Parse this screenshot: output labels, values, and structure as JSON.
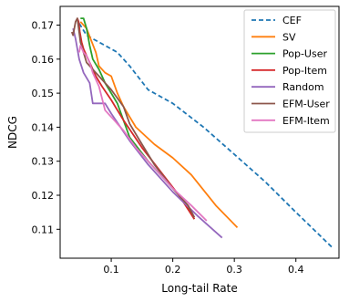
{
  "chart_data": {
    "type": "line",
    "xlabel": "Long-tail Rate",
    "ylabel": "NDCG",
    "xlim": [
      0.017,
      0.47
    ],
    "ylim": [
      0.1015,
      0.1755
    ],
    "xticks": [
      0.1,
      0.2,
      0.3,
      0.4
    ],
    "xtick_labels": [
      "0.1",
      "0.2",
      "0.3",
      "0.4"
    ],
    "yticks": [
      0.11,
      0.12,
      0.13,
      0.14,
      0.15,
      0.16,
      0.17
    ],
    "ytick_labels": [
      "0.11",
      "0.12",
      "0.13",
      "0.14",
      "0.15",
      "0.16",
      "0.17"
    ],
    "grid": false,
    "legend_position": "top-right",
    "series": [
      {
        "name": "CEF",
        "color": "#1f77b4",
        "dash": true,
        "x": [
          0.048,
          0.06,
          0.09,
          0.11,
          0.13,
          0.16,
          0.2,
          0.25,
          0.3,
          0.35,
          0.4,
          0.46
        ],
        "y": [
          0.1705,
          0.167,
          0.164,
          0.162,
          0.158,
          0.151,
          0.147,
          0.14,
          0.132,
          0.124,
          0.115,
          0.1045
        ]
      },
      {
        "name": "SV",
        "color": "#ff7f0e",
        "dash": false,
        "x": [
          0.05,
          0.06,
          0.075,
          0.08,
          0.09,
          0.1,
          0.11,
          0.12,
          0.14,
          0.17,
          0.2,
          0.23,
          0.27,
          0.305
        ],
        "y": [
          0.171,
          0.169,
          0.162,
          0.158,
          0.156,
          0.155,
          0.15,
          0.146,
          0.14,
          0.135,
          0.131,
          0.126,
          0.117,
          0.1105
        ]
      },
      {
        "name": "Pop-User",
        "color": "#2ca02c",
        "dash": false,
        "x": [
          0.05,
          0.055,
          0.06,
          0.065,
          0.07,
          0.08,
          0.09,
          0.11,
          0.13,
          0.16,
          0.19,
          0.215,
          0.235
        ],
        "y": [
          0.172,
          0.172,
          0.169,
          0.164,
          0.16,
          0.157,
          0.153,
          0.147,
          0.137,
          0.13,
          0.124,
          0.119,
          0.113
        ]
      },
      {
        "name": "Pop-Item",
        "color": "#d62728",
        "dash": false,
        "x": [
          0.045,
          0.047,
          0.049,
          0.052,
          0.055,
          0.06,
          0.065,
          0.075,
          0.085,
          0.1,
          0.12,
          0.15,
          0.18,
          0.21,
          0.235
        ],
        "y": [
          0.172,
          0.171,
          0.168,
          0.165,
          0.163,
          0.161,
          0.159,
          0.155,
          0.152,
          0.148,
          0.142,
          0.134,
          0.127,
          0.12,
          0.113
        ]
      },
      {
        "name": "Random",
        "color": "#9467bd",
        "dash": false,
        "x": [
          0.038,
          0.042,
          0.045,
          0.048,
          0.055,
          0.065,
          0.07,
          0.09,
          0.1,
          0.13,
          0.16,
          0.2,
          0.24,
          0.28
        ],
        "y": [
          0.169,
          0.166,
          0.163,
          0.16,
          0.156,
          0.153,
          0.147,
          0.147,
          0.144,
          0.136,
          0.129,
          0.121,
          0.114,
          0.1075
        ]
      },
      {
        "name": "EFM-User",
        "color": "#8c564b",
        "dash": false,
        "x": [
          0.036,
          0.038,
          0.042,
          0.045,
          0.05,
          0.06,
          0.08,
          0.1,
          0.12,
          0.13,
          0.15,
          0.17,
          0.2,
          0.225,
          0.235
        ],
        "y": [
          0.168,
          0.167,
          0.171,
          0.172,
          0.165,
          0.159,
          0.155,
          0.151,
          0.146,
          0.141,
          0.135,
          0.129,
          0.122,
          0.117,
          0.1135
        ]
      },
      {
        "name": "EFM-Item",
        "color": "#e377c2",
        "dash": false,
        "x": [
          0.048,
          0.05,
          0.055,
          0.06,
          0.065,
          0.07,
          0.08,
          0.09,
          0.1,
          0.12,
          0.14,
          0.17,
          0.2,
          0.23,
          0.255
        ],
        "y": [
          0.162,
          0.164,
          0.162,
          0.161,
          0.159,
          0.156,
          0.152,
          0.145,
          0.143,
          0.139,
          0.134,
          0.128,
          0.122,
          0.117,
          0.1125
        ]
      }
    ]
  }
}
